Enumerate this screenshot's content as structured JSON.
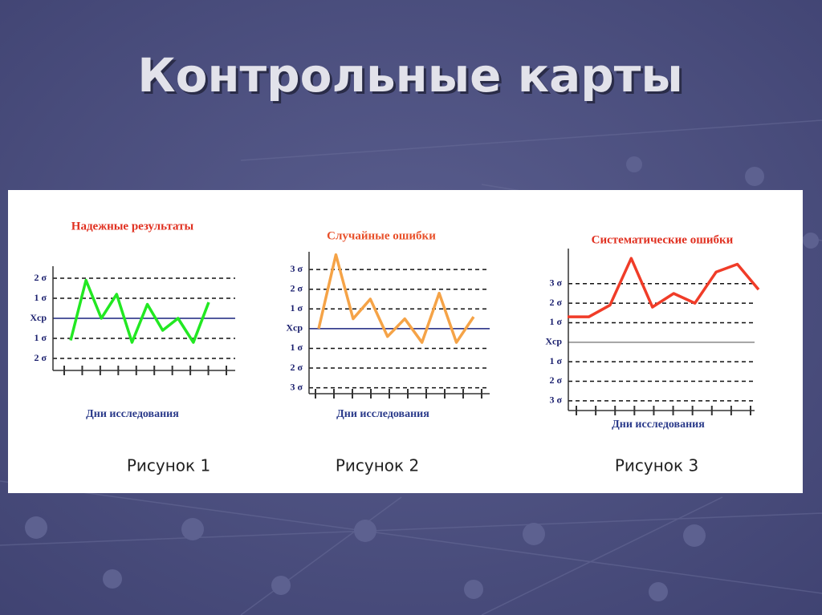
{
  "title": "Контрольные карты",
  "chart_data": [
    {
      "type": "line",
      "title": "Надежные результаты",
      "x_label": "Дни исследования",
      "caption": "Рисунок 1",
      "categories": [
        null,
        null,
        null,
        null,
        null,
        null,
        null,
        null,
        null,
        null
      ],
      "series": [
        {
          "color": "#22e822",
          "values": [
            -1.1,
            1.9,
            0,
            1.2,
            -1.2,
            0.7,
            -0.6,
            0,
            -1.2,
            0.8
          ]
        }
      ],
      "ylim": [
        -2.6,
        2.6
      ],
      "yticks": [
        {
          "value": 2,
          "label": "2 σ"
        },
        {
          "value": 1,
          "label": "1 σ"
        },
        {
          "value": 0,
          "label": "Xср"
        },
        {
          "value": -1,
          "label": "1 σ"
        },
        {
          "value": -2,
          "label": "2 σ"
        }
      ]
    },
    {
      "type": "line",
      "title": "Случайные ошибки",
      "x_label": "Дни исследования",
      "caption": "Рисунок 2",
      "categories": [
        null,
        null,
        null,
        null,
        null,
        null,
        null,
        null,
        null,
        null
      ],
      "series": [
        {
          "color": "#f5a347",
          "values": [
            0,
            3.75,
            0.5,
            1.5,
            -0.4,
            0.5,
            -0.7,
            1.8,
            -0.7,
            0.6
          ]
        }
      ],
      "ylim": [
        -3.3,
        3.9
      ],
      "yticks": [
        {
          "value": 3,
          "label": "3 σ"
        },
        {
          "value": 2,
          "label": "2 σ"
        },
        {
          "value": 1,
          "label": "1 σ"
        },
        {
          "value": 0,
          "label": "Xср"
        },
        {
          "value": -1,
          "label": "1 σ"
        },
        {
          "value": -2,
          "label": "2 σ"
        },
        {
          "value": -3,
          "label": "3 σ"
        }
      ]
    },
    {
      "type": "line",
      "title": "Систематические ошибки",
      "x_label": "Дни исследования",
      "caption": "Рисунок 3",
      "categories": [
        null,
        null,
        null,
        null,
        null,
        null,
        null,
        null,
        null,
        null
      ],
      "series": [
        {
          "color": "#f03c28",
          "values": [
            1.3,
            1.3,
            1.9,
            4.3,
            1.8,
            2.5,
            2,
            3.6,
            4,
            2.7
          ]
        }
      ],
      "ylim": [
        -3.5,
        4.8
      ],
      "yticks": [
        {
          "value": 3,
          "label": "3 σ"
        },
        {
          "value": 2,
          "label": "2 σ"
        },
        {
          "value": 1,
          "label": "1 σ"
        },
        {
          "value": 0,
          "label": "Xср"
        },
        {
          "value": -1,
          "label": "1 σ"
        },
        {
          "value": -2,
          "label": "2 σ"
        },
        {
          "value": -3,
          "label": "3 σ"
        }
      ]
    }
  ]
}
